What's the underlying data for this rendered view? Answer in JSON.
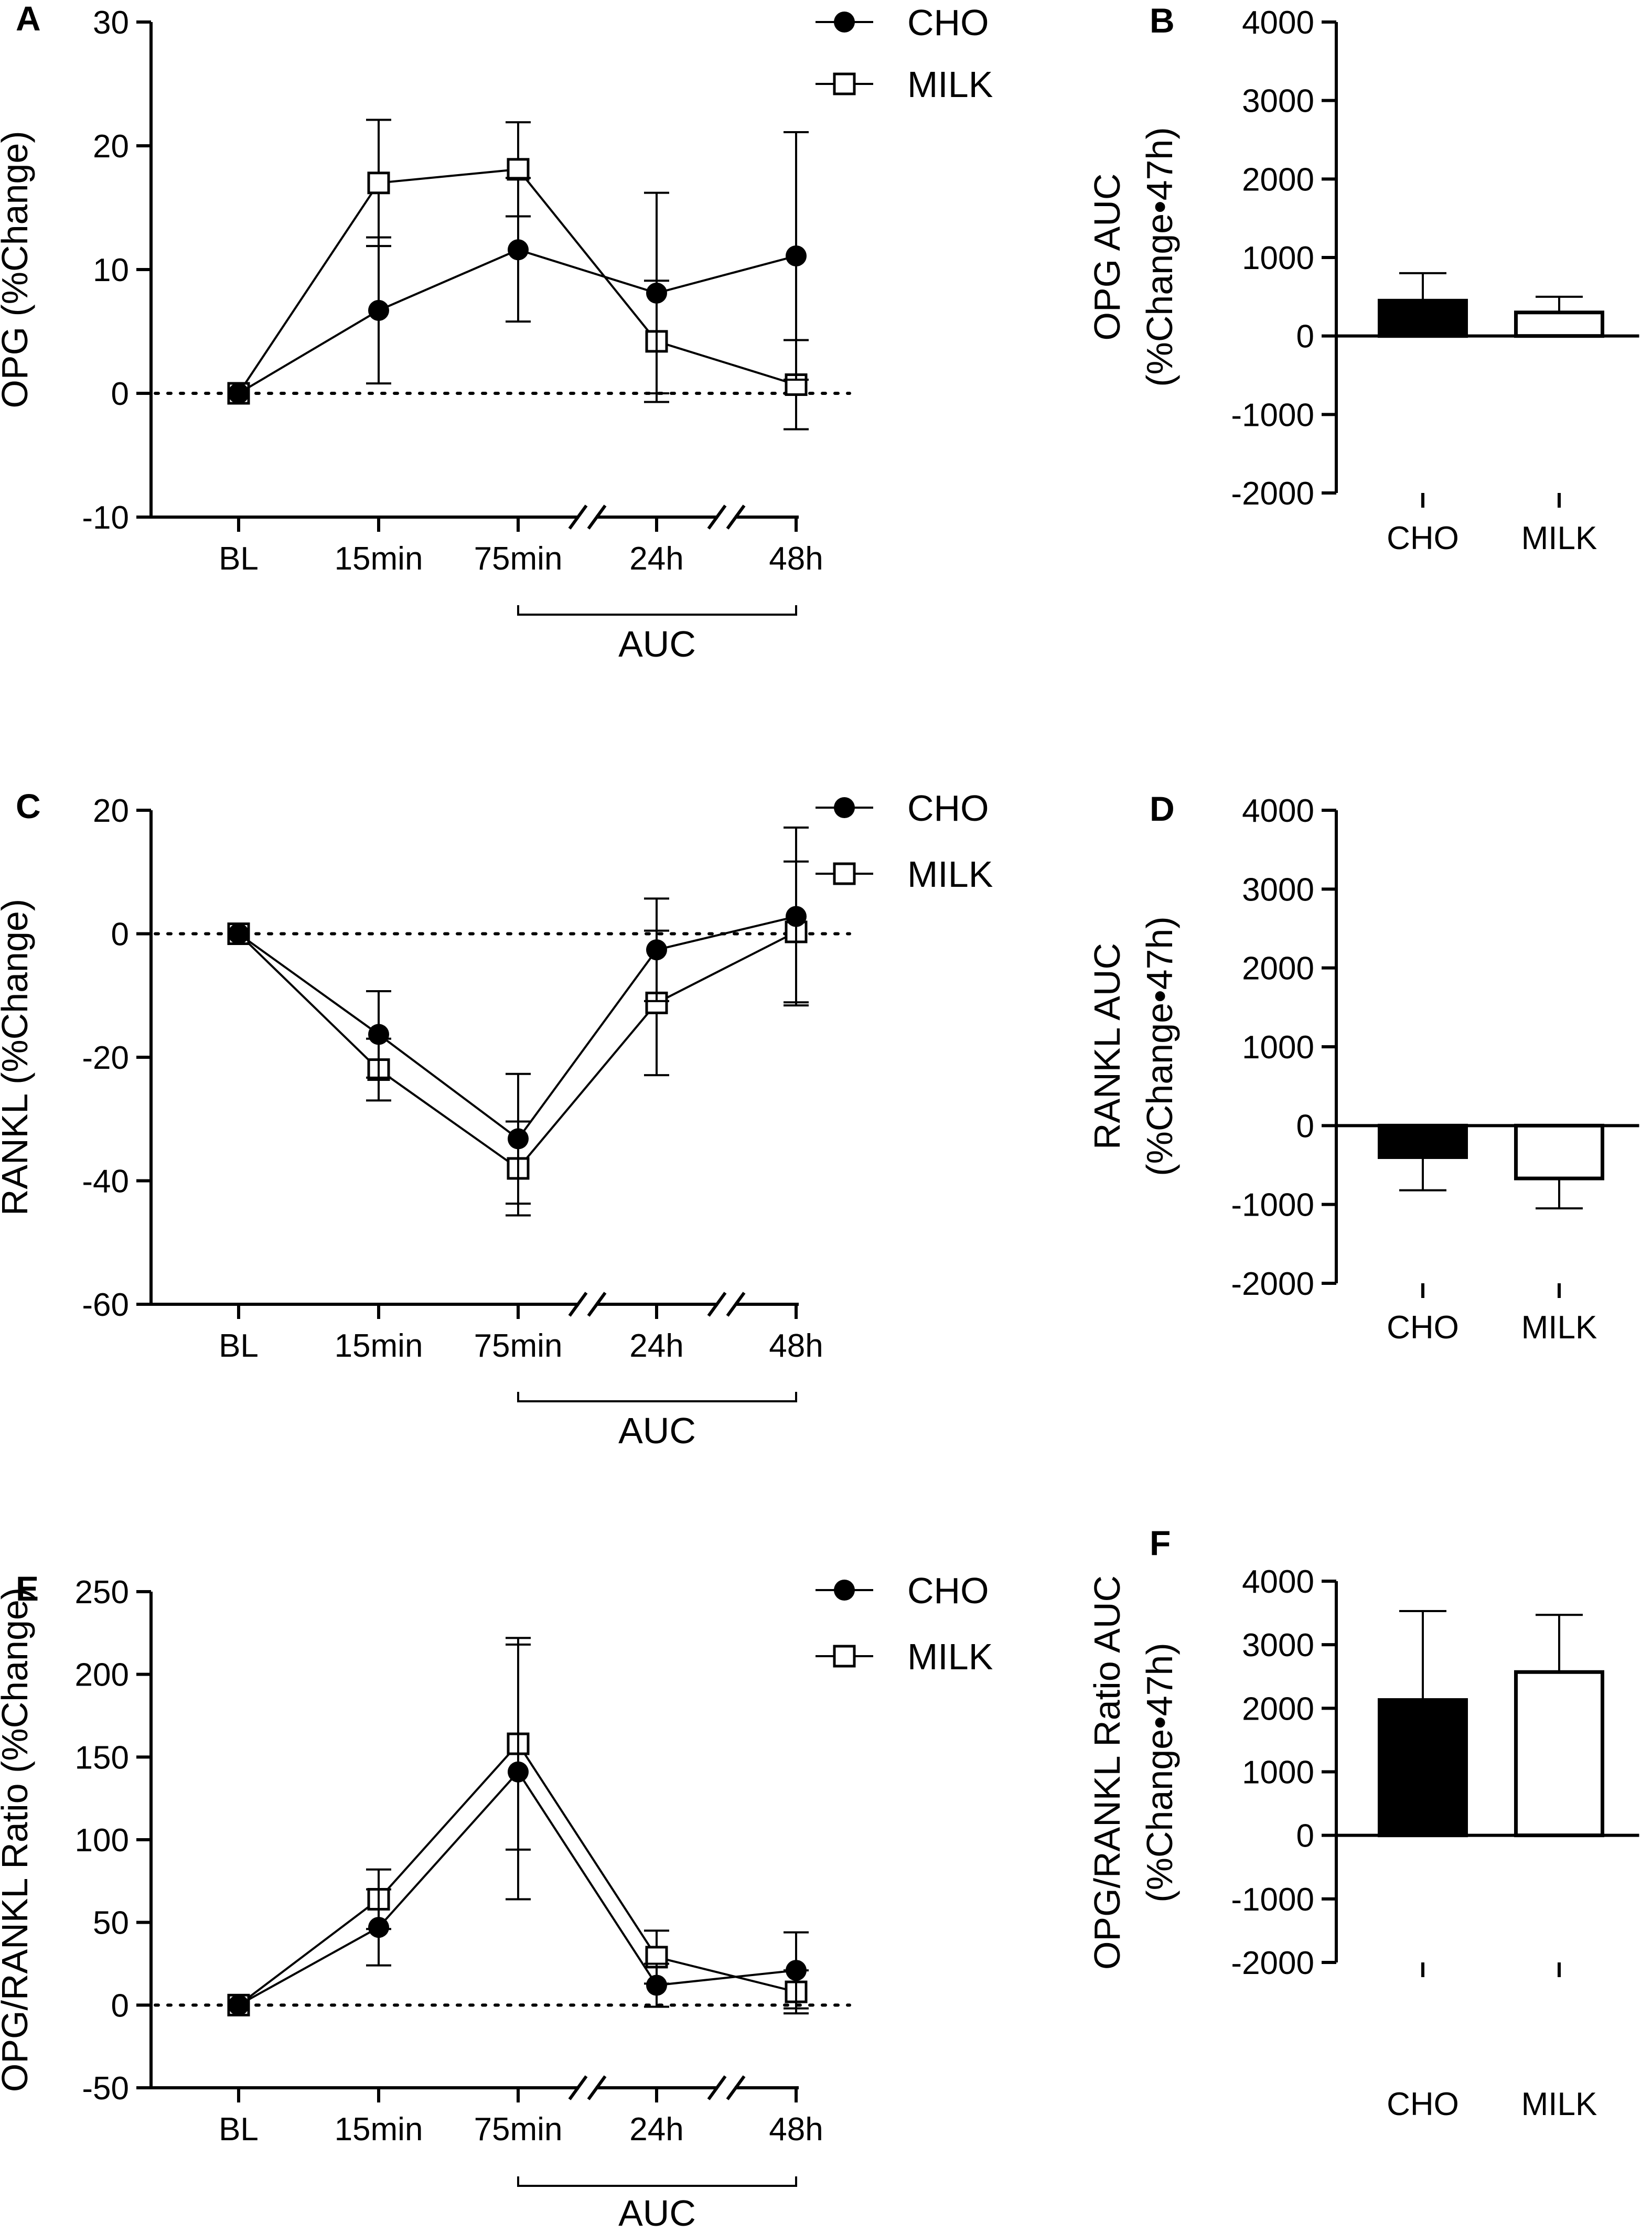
{
  "chart_data": [
    {
      "panel": "A",
      "type": "line",
      "ylabel": "OPG (%Change)",
      "categories": [
        "BL",
        "15min",
        "75min",
        "24h",
        "48h"
      ],
      "ylim": [
        -10,
        30
      ],
      "yticks": [
        -10,
        0,
        10,
        20,
        30
      ],
      "legend": "top-right",
      "auc_label": "AUC",
      "series": [
        {
          "name": "CHO",
          "marker": "filled-circle",
          "values": [
            0,
            6.7,
            11.6,
            8.1,
            11.1
          ],
          "err": [
            0,
            5.9,
            5.8,
            8.1,
            10.0
          ]
        },
        {
          "name": "MILK",
          "marker": "open-square",
          "values": [
            0,
            17.0,
            18.1,
            4.2,
            0.7
          ],
          "err": [
            0,
            5.1,
            3.8,
            4.9,
            3.6
          ]
        }
      ]
    },
    {
      "panel": "B",
      "type": "bar",
      "ylabel": "OPG AUC",
      "ylabel2": "(%Change•47h)",
      "categories": [
        "CHO",
        "MILK"
      ],
      "ylim": [
        -2000,
        4000
      ],
      "yticks": [
        -2000,
        -1000,
        0,
        1000,
        2000,
        3000,
        4000
      ],
      "series": [
        {
          "name": "AUC",
          "values": [
            450,
            300
          ],
          "err": [
            350,
            200
          ]
        }
      ]
    },
    {
      "panel": "C",
      "type": "line",
      "ylabel": "RANKL (%Change)",
      "categories": [
        "BL",
        "15min",
        "75min",
        "24h",
        "48h"
      ],
      "ylim": [
        -60,
        20
      ],
      "yticks": [
        -60,
        -40,
        -20,
        0,
        20
      ],
      "legend": "top-right",
      "auc_label": "AUC",
      "series": [
        {
          "name": "CHO",
          "marker": "filled-circle",
          "values": [
            0,
            -16.3,
            -33.2,
            -2.6,
            2.8
          ],
          "err": [
            0,
            7.0,
            10.5,
            8.3,
            14.4
          ]
        },
        {
          "name": "MILK",
          "marker": "open-square",
          "values": [
            0,
            -22.0,
            -38.0,
            -11.2,
            0.3
          ],
          "err": [
            0,
            5.0,
            7.6,
            11.7,
            11.4
          ]
        }
      ]
    },
    {
      "panel": "D",
      "type": "bar",
      "ylabel": "RANKL AUC",
      "ylabel2": "(%Change•47h)",
      "categories": [
        "CHO",
        "MILK"
      ],
      "ylim": [
        -2000,
        4000
      ],
      "yticks": [
        -2000,
        -1000,
        0,
        1000,
        2000,
        3000,
        4000
      ],
      "series": [
        {
          "name": "AUC",
          "values": [
            -400,
            -670
          ],
          "err": [
            420,
            380
          ]
        }
      ]
    },
    {
      "panel": "E",
      "type": "line",
      "ylabel": "OPG/RANKL Ratio (%Change)",
      "categories": [
        "BL",
        "15min",
        "75min",
        "24h",
        "48h"
      ],
      "ylim": [
        -50,
        250
      ],
      "yticks": [
        -50,
        0,
        50,
        100,
        150,
        200,
        250
      ],
      "legend": "top-right",
      "auc_label": "AUC",
      "series": [
        {
          "name": "CHO",
          "marker": "filled-circle",
          "values": [
            0,
            47,
            141,
            12,
            21
          ],
          "err": [
            0,
            23,
            77,
            13,
            23
          ]
        },
        {
          "name": "MILK",
          "marker": "open-square",
          "values": [
            0,
            64,
            158,
            29,
            8
          ],
          "err": [
            0,
            18,
            64,
            16,
            13
          ]
        }
      ]
    },
    {
      "panel": "F",
      "type": "bar",
      "ylabel": "OPG/RANKL Ratio AUC",
      "ylabel2": "(%Change•47h)",
      "categories": [
        "CHO",
        "MILK"
      ],
      "ylim": [
        -2000,
        4000
      ],
      "yticks": [
        -2000,
        -1000,
        0,
        1000,
        2000,
        3000,
        4000
      ],
      "series": [
        {
          "name": "AUC",
          "values": [
            2130,
            2570
          ],
          "err": [
            1400,
            900
          ]
        }
      ]
    }
  ]
}
